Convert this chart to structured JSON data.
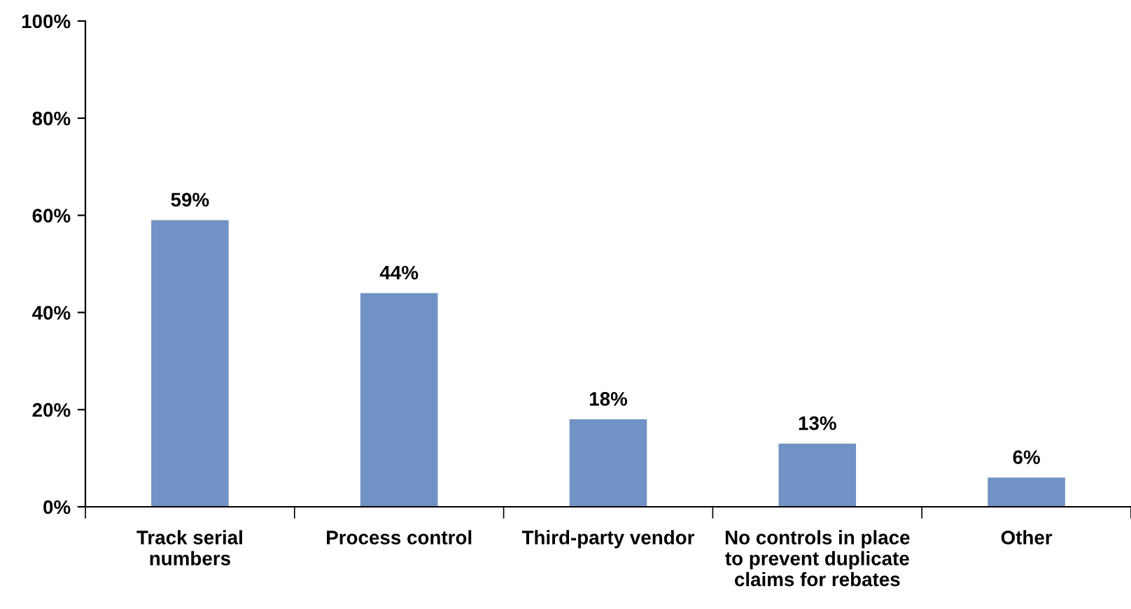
{
  "chart_data": {
    "type": "bar",
    "categories": [
      "Track serial\nnumbers",
      "Process control",
      "Third-party vendor",
      "No controls in place\nto prevent duplicate\nclaims for rebates",
      "Other"
    ],
    "values": [
      59,
      44,
      18,
      13,
      6
    ],
    "value_labels": [
      "59%",
      "44%",
      "18%",
      "13%",
      "6%"
    ],
    "color": "#7092c4",
    "ylim": [
      0,
      100
    ],
    "yticks": [
      {
        "value": 0,
        "label": "0%"
      },
      {
        "value": 20,
        "label": "20%"
      },
      {
        "value": 40,
        "label": "40%"
      },
      {
        "value": 60,
        "label": "60%"
      },
      {
        "value": 80,
        "label": "80%"
      },
      {
        "value": 100,
        "label": "100%"
      }
    ],
    "grid": false,
    "legend": false
  }
}
